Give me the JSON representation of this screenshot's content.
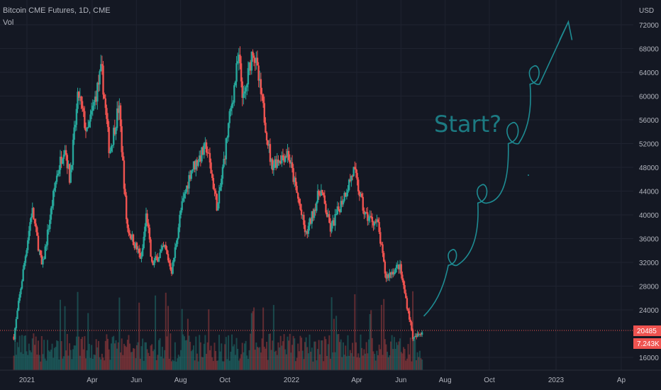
{
  "header": {
    "symbol_line": "Bitcoin CME Futures, 1D, CME",
    "volume_label": "Vol"
  },
  "price_axis": {
    "currency": "USD",
    "ticks": [
      "72000",
      "68000",
      "64000",
      "60000",
      "56000",
      "52000",
      "48000",
      "44000",
      "40000",
      "36000",
      "32000",
      "28000",
      "24000",
      "16000"
    ],
    "last_price_label": "20485",
    "last_volume_label": "7.243K"
  },
  "time_axis": {
    "ticks": [
      "2021",
      "Apr",
      "Jun",
      "Aug",
      "Oct",
      "2022",
      "Apr",
      "Jun",
      "Aug",
      "Oct",
      "2023",
      "Ap"
    ]
  },
  "annotation": {
    "text": "Start?",
    "color": "#1e8c93"
  },
  "colors": {
    "background": "#141823",
    "up": "#26a69a",
    "down": "#ef5350",
    "grid": "#1f2330",
    "axis_text": "#b2b5be"
  },
  "chart_data": {
    "type": "candlestick",
    "title": "Bitcoin CME Futures, 1D, CME",
    "y_unit": "USD",
    "ylim": [
      15500,
      74500
    ],
    "x_range": [
      "2020-12",
      "2023-04"
    ],
    "grid": true,
    "approx_close_path": [
      {
        "date": "2020-12-14",
        "value": 19500
      },
      {
        "date": "2021-01-08",
        "value": 41000
      },
      {
        "date": "2021-01-22",
        "value": 31000
      },
      {
        "date": "2021-02-10",
        "value": 46000
      },
      {
        "date": "2021-02-22",
        "value": 52000
      },
      {
        "date": "2021-03-01",
        "value": 46000
      },
      {
        "date": "2021-03-13",
        "value": 60500
      },
      {
        "date": "2021-03-25",
        "value": 53500
      },
      {
        "date": "2021-04-14",
        "value": 64500
      },
      {
        "date": "2021-04-25",
        "value": 50500
      },
      {
        "date": "2021-05-08",
        "value": 58500
      },
      {
        "date": "2021-05-19",
        "value": 38000
      },
      {
        "date": "2021-06-08",
        "value": 32500
      },
      {
        "date": "2021-06-15",
        "value": 40500
      },
      {
        "date": "2021-06-22",
        "value": 31500
      },
      {
        "date": "2021-07-10",
        "value": 34500
      },
      {
        "date": "2021-07-20",
        "value": 30500
      },
      {
        "date": "2021-08-01",
        "value": 40500
      },
      {
        "date": "2021-08-15",
        "value": 47500
      },
      {
        "date": "2021-09-06",
        "value": 51500
      },
      {
        "date": "2021-09-21",
        "value": 41000
      },
      {
        "date": "2021-10-06",
        "value": 55000
      },
      {
        "date": "2021-10-20",
        "value": 66500
      },
      {
        "date": "2021-10-27",
        "value": 59000
      },
      {
        "date": "2021-11-09",
        "value": 68500
      },
      {
        "date": "2021-11-24",
        "value": 57000
      },
      {
        "date": "2021-12-04",
        "value": 48500
      },
      {
        "date": "2021-12-27",
        "value": 50500
      },
      {
        "date": "2022-01-21",
        "value": 36500
      },
      {
        "date": "2022-02-10",
        "value": 44500
      },
      {
        "date": "2022-02-24",
        "value": 37500
      },
      {
        "date": "2022-03-28",
        "value": 47500
      },
      {
        "date": "2022-04-12",
        "value": 40000
      },
      {
        "date": "2022-04-30",
        "value": 38500
      },
      {
        "date": "2022-05-11",
        "value": 29500
      },
      {
        "date": "2022-05-30",
        "value": 31500
      },
      {
        "date": "2022-06-13",
        "value": 22500
      },
      {
        "date": "2022-06-18",
        "value": 19000
      },
      {
        "date": "2022-07-01",
        "value": 20485
      }
    ],
    "last_price": 20485,
    "last_volume": "7.243K",
    "projection_curve": [
      {
        "date": "2022-07-03",
        "value": 23000
      },
      {
        "date": "2022-08-20",
        "value": 31500
      },
      {
        "date": "2022-09-20",
        "value": 42000
      },
      {
        "date": "2022-11-01",
        "value": 52000
      },
      {
        "date": "2022-12-01",
        "value": 62000
      },
      {
        "date": "2023-01-18",
        "value": 72500
      }
    ],
    "annotations": [
      "Start?"
    ]
  }
}
